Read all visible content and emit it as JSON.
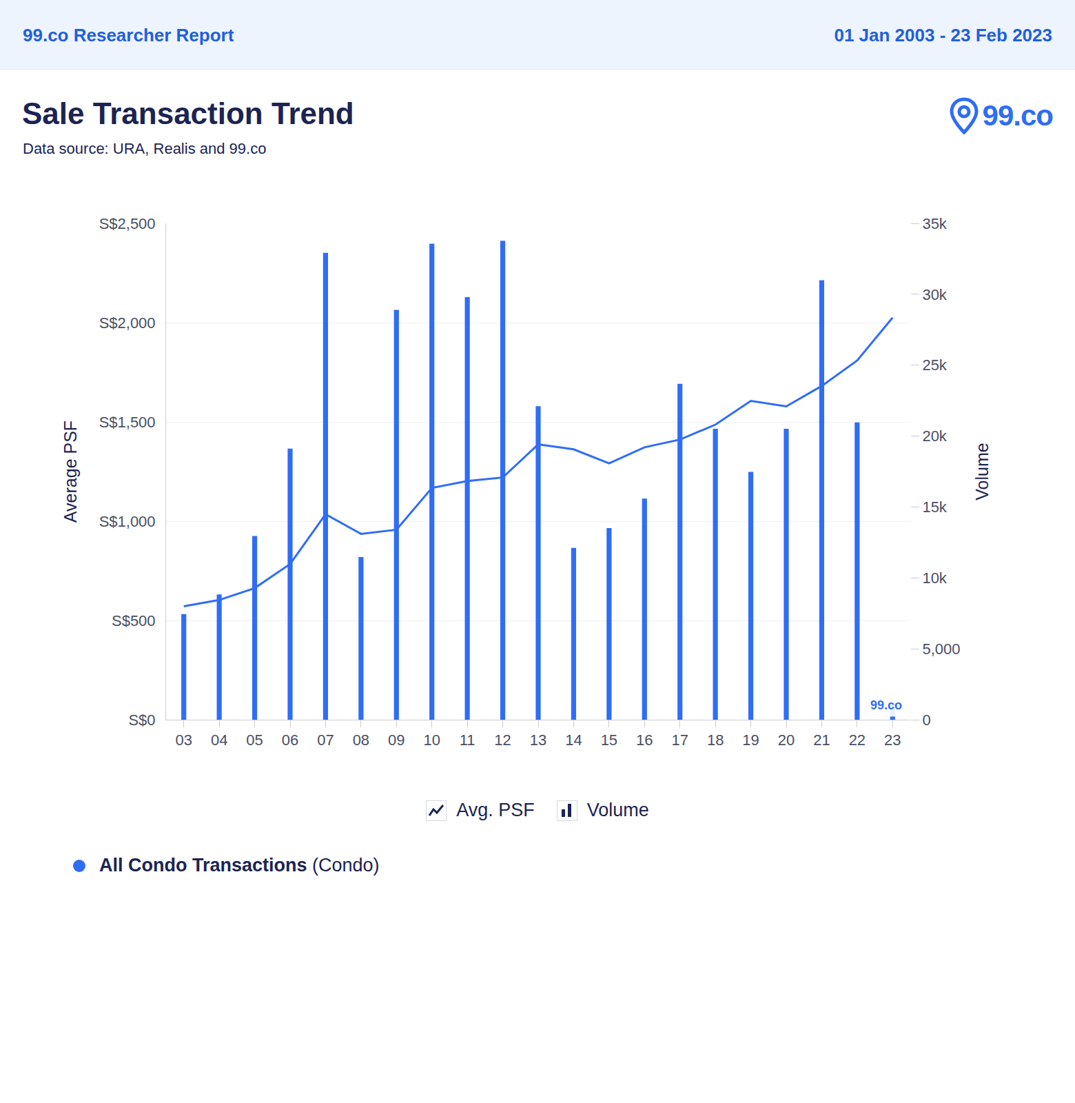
{
  "header": {
    "left": "99.co Researcher Report",
    "right": "01 Jan 2003 - 23 Feb 2023"
  },
  "logo": "99.co",
  "chart_data": {
    "type": "bar",
    "title": "Sale Transaction Trend",
    "subtitle": "Data source: URA, Realis and 99.co",
    "watermark": "99.co",
    "categories": [
      "03",
      "04",
      "05",
      "06",
      "07",
      "08",
      "09",
      "10",
      "11",
      "12",
      "13",
      "14",
      "15",
      "16",
      "17",
      "18",
      "19",
      "20",
      "21",
      "22",
      "23"
    ],
    "series": [
      {
        "name": "Avg. PSF",
        "type": "line",
        "axis": "y",
        "color": "#2f6df6",
        "values": [
          571,
          603,
          663,
          784,
          1035,
          936,
          957,
          1167,
          1202,
          1220,
          1387,
          1362,
          1291,
          1372,
          1411,
          1486,
          1606,
          1578,
          1681,
          1809,
          2025
        ]
      },
      {
        "name": "Volume",
        "type": "bar",
        "axis": "y2",
        "color": "#2f6df6",
        "values": [
          7450,
          8840,
          12960,
          19120,
          32920,
          11470,
          28900,
          33570,
          29800,
          33770,
          22100,
          12120,
          13510,
          15590,
          23690,
          20510,
          17480,
          20510,
          30990,
          20960,
          1200
        ]
      }
    ],
    "ylabel": "Average PSF",
    "y2label": "Volume",
    "ylim": [
      0,
      2500
    ],
    "yticks": [
      {
        "value": 0,
        "label": "S$0"
      },
      {
        "value": 500,
        "label": "S$500"
      },
      {
        "value": 1000,
        "label": "S$1,000"
      },
      {
        "value": 1500,
        "label": "S$1,500"
      },
      {
        "value": 2000,
        "label": "S$2,000"
      },
      {
        "value": 2500,
        "label": "S$2,500"
      }
    ],
    "y2lim": [
      0,
      35000
    ],
    "y2ticks": [
      0,
      {
        "value": 5000,
        "label": "5,000"
      },
      {
        "value": 10000,
        "label": "10k"
      },
      {
        "value": 15000,
        "label": "15k"
      },
      {
        "value": 20000,
        "label": "20k"
      },
      {
        "value": 25000,
        "label": "25k"
      },
      {
        "value": 30000,
        "label": "30k"
      },
      {
        "value": 35000,
        "label": "35k"
      }
    ],
    "grid": true,
    "legend_footer": {
      "name": "All Condo Transactions",
      "detail": "(Condo)",
      "color": "#2f6df6"
    }
  }
}
